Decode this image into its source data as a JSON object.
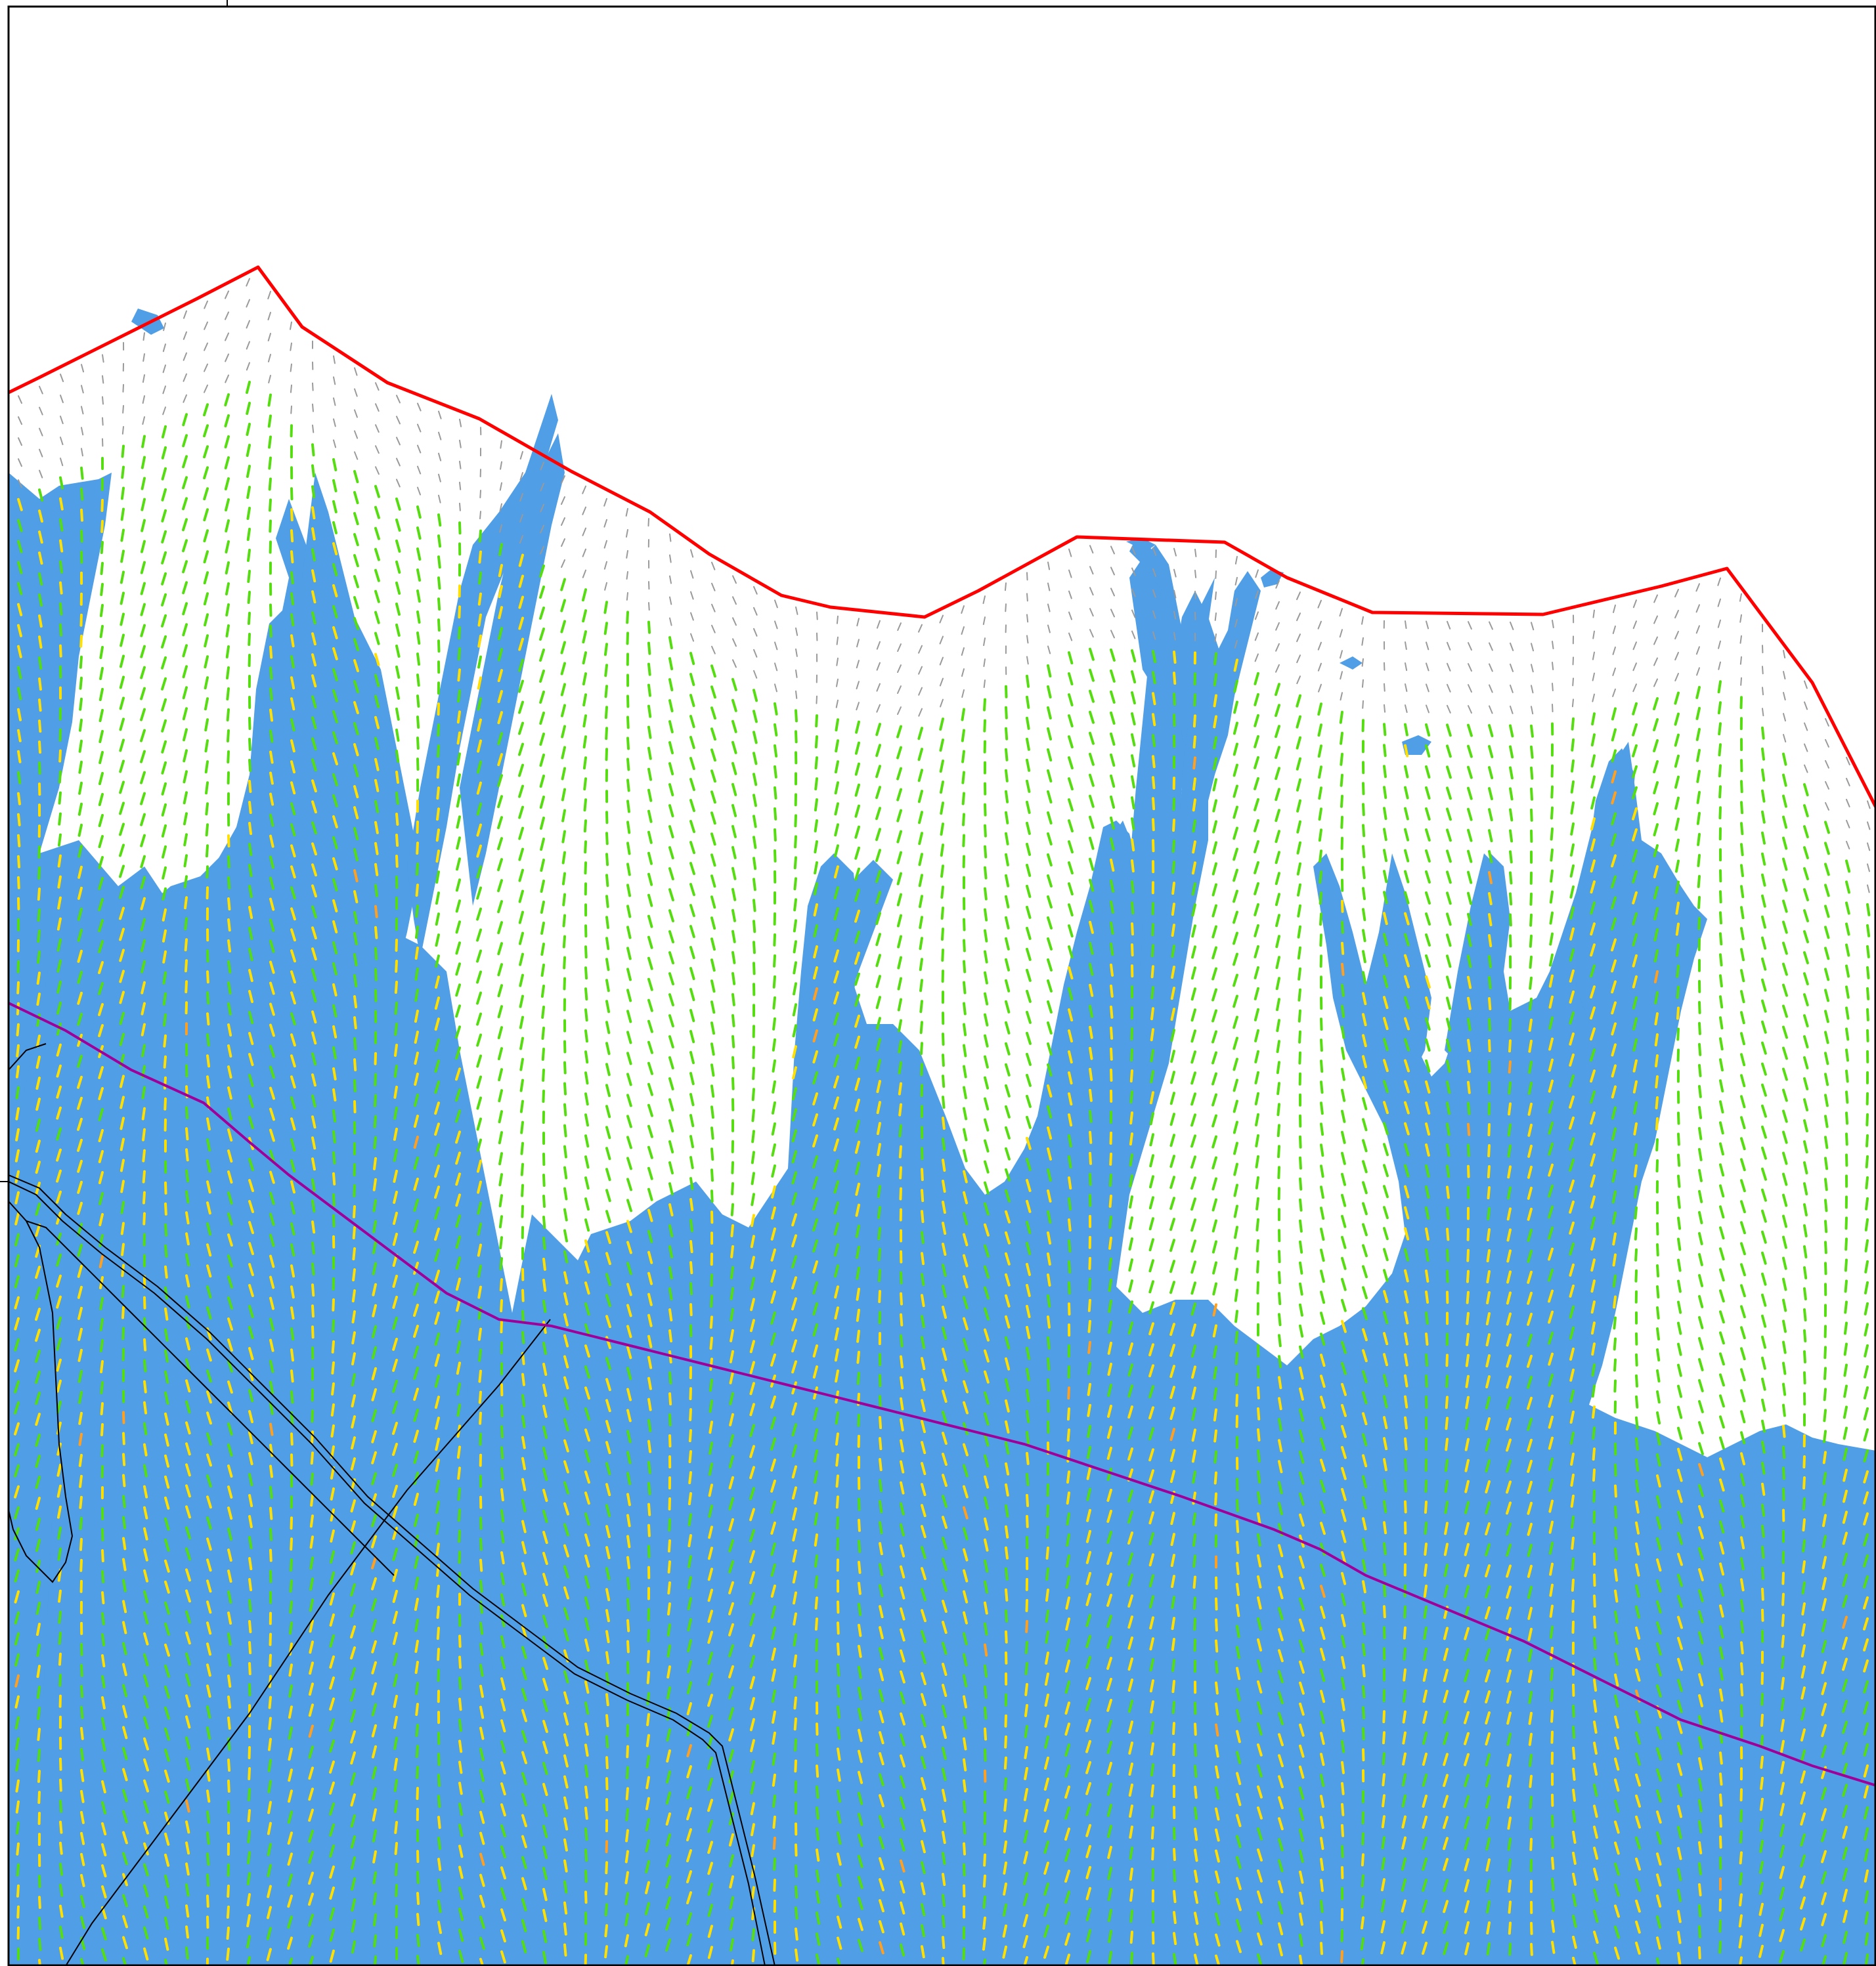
{
  "map": {
    "colors": {
      "background": "#ffffff",
      "frame": "#000000",
      "flow_fill": "#4f9ee6",
      "boundary": "#ff0000",
      "road": "#a0009a",
      "parcel_line": "#000000",
      "arrow_low": "#9a9a9a",
      "arrow_mid": "#55dd11",
      "arrow_high": "#ffe000",
      "arrow_peak": "#ffa020"
    },
    "layers": {
      "flow_extent": "inundation-areas",
      "velocity": "flow-direction-arrows",
      "boundary": "catchment-boundary",
      "road": "road-centerline",
      "parcels": "parcel-boundaries"
    }
  }
}
